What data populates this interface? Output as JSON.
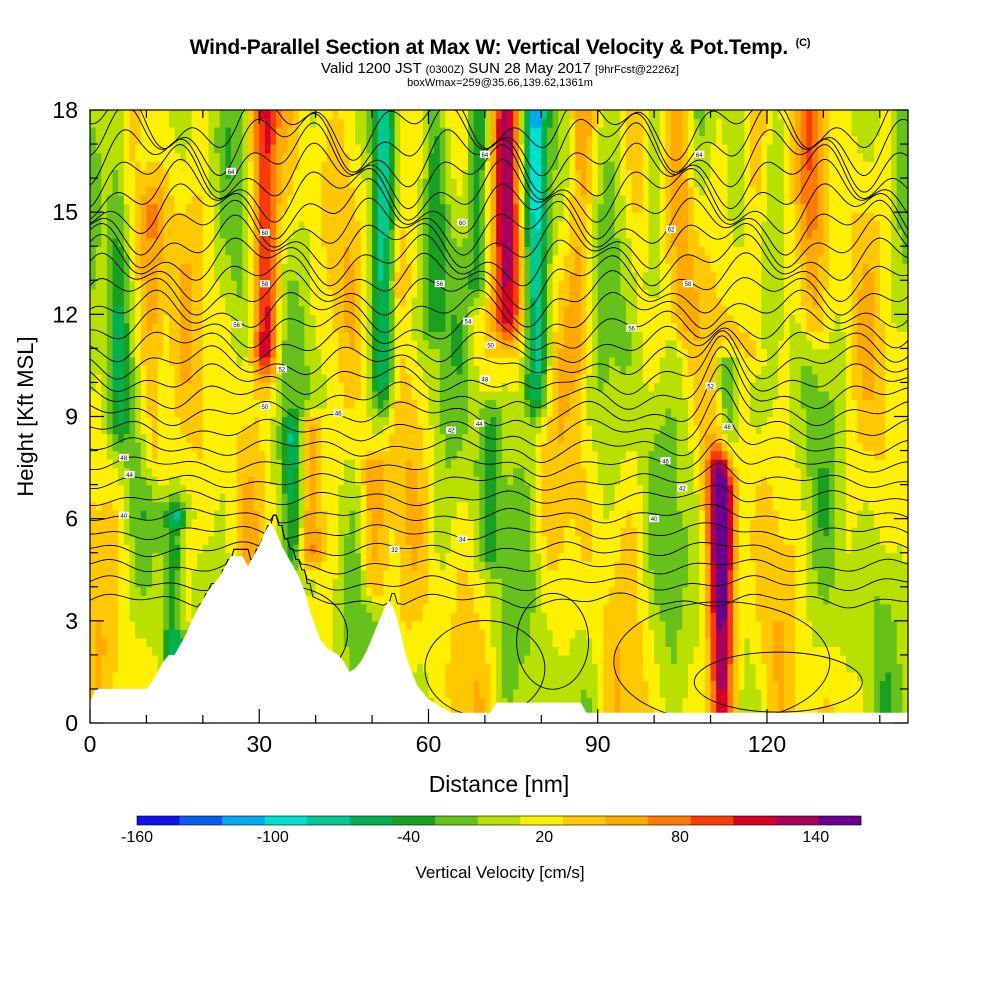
{
  "title": {
    "main": "Wind-Parallel Section at Max W: Vertical Velocity & Pot.Temp.",
    "copyright": "(C)",
    "valid_prefix": "Valid 1200 JST",
    "valid_utc": "(0300Z)",
    "valid_date": "SUN 28 May 2017",
    "forecast": "[9hrFcst@2226z]",
    "box": "boxWmax=259@35.66,139.62,1361m"
  },
  "chart_data": {
    "type": "heatmap",
    "xlabel": "Distance [nm]",
    "ylabel": "Height [Kft MSL]",
    "xlim": [
      0,
      145
    ],
    "ylim": [
      0,
      18
    ],
    "x_ticks": [
      "0",
      "30",
      "60",
      "90",
      "120"
    ],
    "y_ticks": [
      "0",
      "3",
      "6",
      "9",
      "12",
      "15",
      "18"
    ],
    "colorbar": {
      "label": "Vertical Velocity [cm/s]",
      "range": [
        -160,
        160
      ],
      "tick_labels": [
        "-160",
        "-100",
        "-40",
        "20",
        "80",
        "140"
      ],
      "tick_values": [
        -160,
        -100,
        -40,
        20,
        80,
        140
      ],
      "colors": [
        "#1111ee",
        "#0a5cf0",
        "#00aaf0",
        "#00e0d0",
        "#00c890",
        "#00b050",
        "#19a020",
        "#66c21a",
        "#b8e000",
        "#fff000",
        "#ffc800",
        "#ffaa00",
        "#ff7a00",
        "#f83c08",
        "#d8002a",
        "#a8005a",
        "#6a0090"
      ]
    },
    "terrain": [
      [
        0,
        0.6
      ],
      [
        1,
        1.0
      ],
      [
        10,
        1.0
      ],
      [
        11,
        1.2
      ],
      [
        12,
        1.5
      ],
      [
        13,
        1.8
      ],
      [
        14,
        2.0
      ],
      [
        15,
        2.0
      ],
      [
        16,
        2.3
      ],
      [
        17,
        2.6
      ],
      [
        18,
        3.0
      ],
      [
        19,
        3.3
      ],
      [
        20,
        3.6
      ],
      [
        21,
        3.9
      ],
      [
        23,
        4.3
      ],
      [
        24,
        4.6
      ],
      [
        25,
        4.9
      ],
      [
        27,
        4.9
      ],
      [
        28,
        4.6
      ],
      [
        29,
        4.9
      ],
      [
        30,
        5.2
      ],
      [
        31,
        5.6
      ],
      [
        32,
        5.9
      ],
      [
        33,
        5.6
      ],
      [
        34,
        5.2
      ],
      [
        35,
        4.9
      ],
      [
        36,
        4.6
      ],
      [
        37,
        4.3
      ],
      [
        38,
        3.9
      ],
      [
        39,
        3.3
      ],
      [
        40,
        2.8
      ],
      [
        41,
        2.4
      ],
      [
        42,
        2.2
      ],
      [
        44,
        2.0
      ],
      [
        45,
        1.8
      ],
      [
        46,
        1.5
      ],
      [
        47,
        1.6
      ],
      [
        48,
        1.8
      ],
      [
        49,
        2.1
      ],
      [
        50,
        2.5
      ],
      [
        51,
        2.9
      ],
      [
        52,
        3.3
      ],
      [
        53,
        3.6
      ],
      [
        54,
        3.3
      ],
      [
        55,
        2.7
      ],
      [
        56,
        2.0
      ],
      [
        57,
        1.5
      ],
      [
        58,
        1.1
      ],
      [
        59,
        0.9
      ],
      [
        60,
        0.7
      ],
      [
        62,
        0.5
      ],
      [
        64,
        0.3
      ],
      [
        68,
        0.3
      ],
      [
        71,
        0.3
      ],
      [
        72,
        0.6
      ],
      [
        87,
        0.6
      ],
      [
        88,
        0.3
      ],
      [
        145,
        0.3
      ]
    ],
    "updraft_bands": [
      {
        "x": 31,
        "top": 18.0,
        "bottom": 11.0,
        "peak": 95
      },
      {
        "x": 74,
        "top": 18.0,
        "bottom": 12.0,
        "peak": 95
      },
      {
        "x": 112,
        "top": 7.2,
        "bottom": 0.5,
        "peak": 150
      },
      {
        "x": 39,
        "top": 8.6,
        "bottom": 5.0,
        "peak": 80
      },
      {
        "x": 11,
        "top": 15.0,
        "bottom": 8.0,
        "peak": 50
      },
      {
        "x": 16,
        "top": 5.5,
        "bottom": 3.0,
        "peak": 50
      },
      {
        "x": 50,
        "top": 7.5,
        "bottom": 4.0,
        "peak": 45
      },
      {
        "x": 55,
        "top": 18.0,
        "bottom": 13.0,
        "peak": 40
      },
      {
        "x": 87,
        "top": 18.0,
        "bottom": 11.0,
        "peak": 45
      },
      {
        "x": 118,
        "top": 18.0,
        "bottom": 11.0,
        "peak": 45
      },
      {
        "x": 128,
        "top": 18.0,
        "bottom": 12.0,
        "peak": 40
      },
      {
        "x": 105,
        "top": 18.0,
        "bottom": 12.0,
        "peak": 40
      }
    ],
    "downdraft_bands": [
      {
        "x": 79,
        "top": 18.0,
        "bottom": 10.0,
        "peak": -95
      },
      {
        "x": 52,
        "top": 18.0,
        "bottom": 10.0,
        "peak": -75
      },
      {
        "x": 69,
        "top": 18.0,
        "bottom": 13.0,
        "peak": -60
      },
      {
        "x": 36,
        "top": 8.5,
        "bottom": 5.0,
        "peak": -60
      },
      {
        "x": 15,
        "top": 6.0,
        "bottom": 2.0,
        "peak": -80
      },
      {
        "x": 5,
        "top": 18.0,
        "bottom": 9.0,
        "peak": -50
      },
      {
        "x": 113,
        "top": 10.5,
        "bottom": 7.5,
        "peak": -55
      },
      {
        "x": 61,
        "top": 18.0,
        "bottom": 12.0,
        "peak": -45
      },
      {
        "x": 100,
        "top": 18.0,
        "bottom": 13.0,
        "peak": -40
      },
      {
        "x": 71,
        "top": 9.0,
        "bottom": 5.0,
        "peak": -40
      }
    ],
    "theta_contour_labels": [
      {
        "x": 25,
        "y": 16.2,
        "text": "64"
      },
      {
        "x": 31,
        "y": 14.4,
        "text": "60"
      },
      {
        "x": 31,
        "y": 12.9,
        "text": "58"
      },
      {
        "x": 26,
        "y": 11.7,
        "text": "56"
      },
      {
        "x": 34,
        "y": 10.4,
        "text": "52"
      },
      {
        "x": 31,
        "y": 9.3,
        "text": "50"
      },
      {
        "x": 44,
        "y": 9.1,
        "text": "46"
      },
      {
        "x": 6,
        "y": 7.8,
        "text": "48"
      },
      {
        "x": 7,
        "y": 7.3,
        "text": "44"
      },
      {
        "x": 6,
        "y": 6.1,
        "text": "40"
      },
      {
        "x": 54,
        "y": 5.1,
        "text": "32"
      },
      {
        "x": 66,
        "y": 5.4,
        "text": "34"
      },
      {
        "x": 70,
        "y": 16.7,
        "text": "64"
      },
      {
        "x": 66,
        "y": 14.7,
        "text": "60"
      },
      {
        "x": 62,
        "y": 12.9,
        "text": "56"
      },
      {
        "x": 67,
        "y": 11.8,
        "text": "54"
      },
      {
        "x": 71,
        "y": 11.1,
        "text": "50"
      },
      {
        "x": 70,
        "y": 10.1,
        "text": "48"
      },
      {
        "x": 69,
        "y": 8.8,
        "text": "44"
      },
      {
        "x": 64,
        "y": 8.6,
        "text": "42"
      },
      {
        "x": 108,
        "y": 16.7,
        "text": "64"
      },
      {
        "x": 103,
        "y": 14.5,
        "text": "62"
      },
      {
        "x": 106,
        "y": 12.9,
        "text": "58"
      },
      {
        "x": 96,
        "y": 11.6,
        "text": "56"
      },
      {
        "x": 110,
        "y": 9.9,
        "text": "52"
      },
      {
        "x": 113,
        "y": 8.7,
        "text": "48"
      },
      {
        "x": 102,
        "y": 7.7,
        "text": "46"
      },
      {
        "x": 105,
        "y": 6.9,
        "text": "42"
      },
      {
        "x": 100,
        "y": 6.0,
        "text": "40"
      }
    ]
  }
}
